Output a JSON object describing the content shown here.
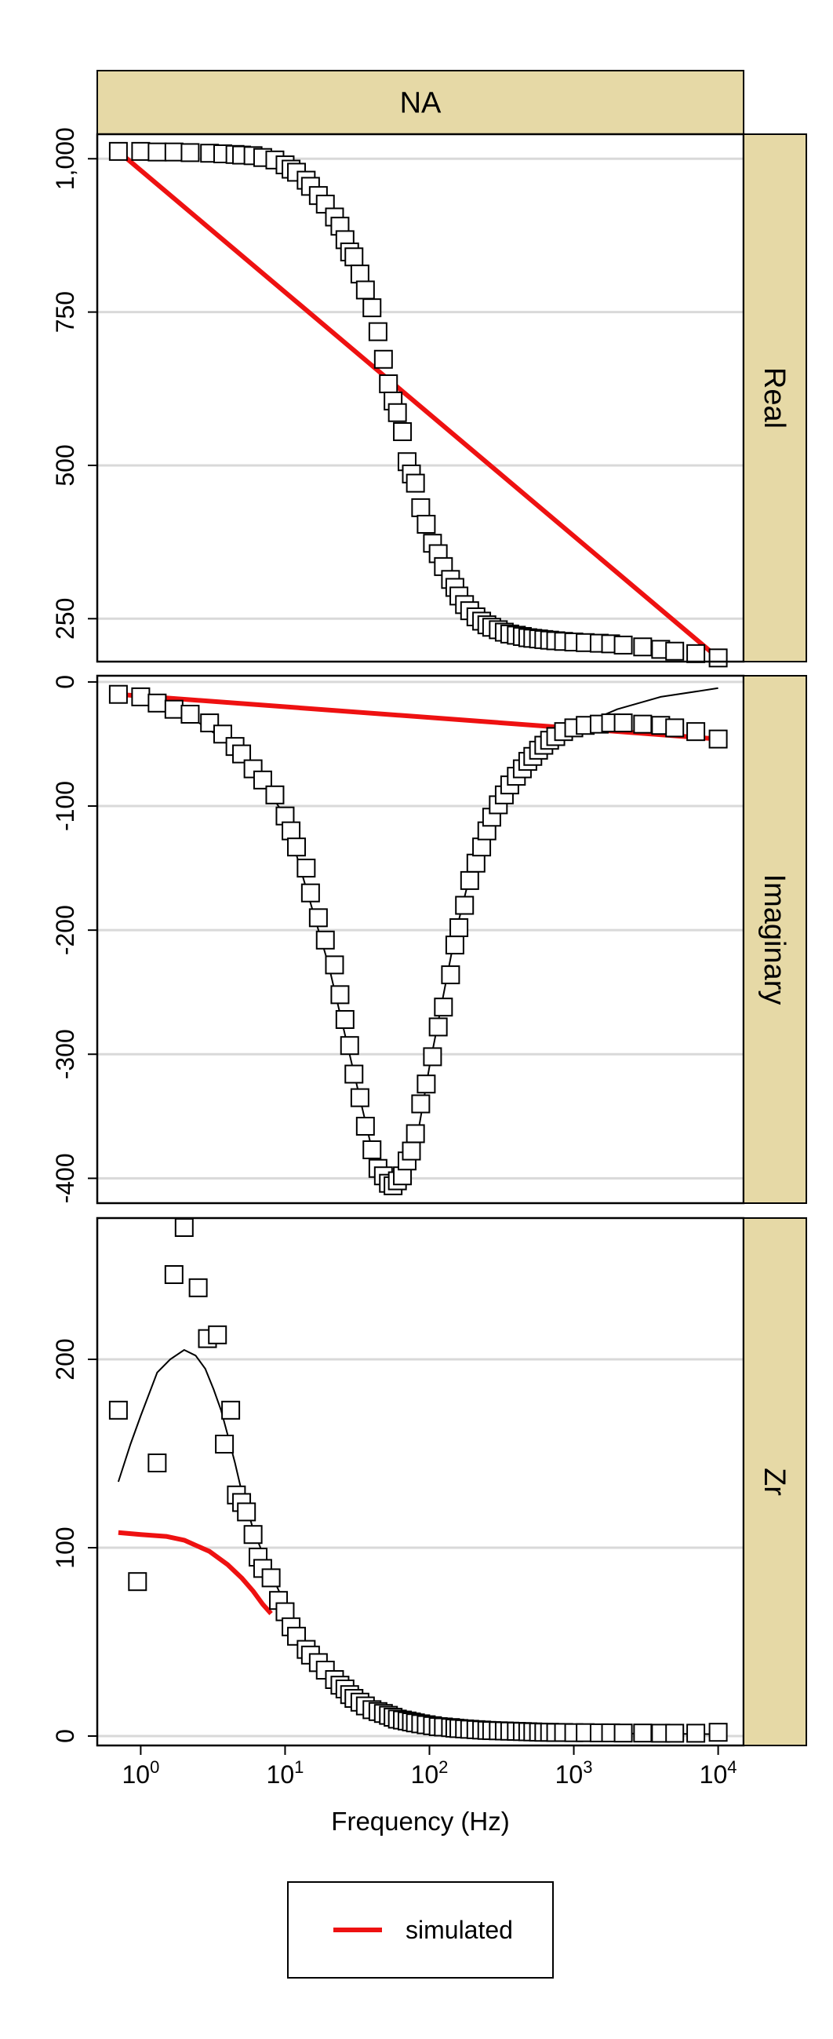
{
  "chart_data": {
    "type": "scatter",
    "title": "",
    "column_strip": "NA",
    "xlabel": "Frequency (Hz)",
    "x_scale": "log",
    "x_range": [
      0.5,
      15000
    ],
    "x_ticks": [
      {
        "value": 1,
        "base": "10",
        "exp": "0"
      },
      {
        "value": 10,
        "base": "10",
        "exp": "1"
      },
      {
        "value": 100,
        "base": "10",
        "exp": "2"
      },
      {
        "value": 1000,
        "base": "10",
        "exp": "3"
      },
      {
        "value": 10000,
        "base": "10",
        "exp": "4"
      }
    ],
    "colors": {
      "strip_fill": "#e6d9a6",
      "simulated": "#ee1111",
      "fit": "#000000",
      "grid": "#d9d9d9",
      "points": "#000000"
    },
    "legend": {
      "position": "bottom",
      "entries": [
        "simulated"
      ]
    },
    "grid": "horizontal major",
    "panels": [
      {
        "strip": "Real",
        "ylim": [
          180,
          1040
        ],
        "y_ticks": [
          250,
          500,
          750,
          1000
        ],
        "y_tick_labels": [
          "250",
          "500",
          "750",
          "1,000"
        ],
        "observed": {
          "x": [
            0.7,
            1,
            1.3,
            1.7,
            2.2,
            3,
            3.7,
            4.5,
            5,
            6,
            7,
            8.5,
            10,
            11,
            12,
            14,
            15,
            17,
            19,
            22,
            24,
            26,
            28,
            30,
            33,
            36,
            40,
            44,
            48,
            52,
            56,
            60,
            65,
            70,
            75,
            80,
            87,
            95,
            105,
            115,
            125,
            140,
            150,
            160,
            175,
            190,
            210,
            230,
            250,
            270,
            300,
            330,
            360,
            400,
            440,
            480,
            520,
            570,
            620,
            680,
            750,
            850,
            1000,
            1200,
            1500,
            1800,
            2200,
            3000,
            4000,
            5000,
            7000,
            10000
          ],
          "y": [
            1012,
            1012,
            1011,
            1011,
            1010,
            1009,
            1008,
            1007,
            1006,
            1005,
            1002,
            998,
            990,
            983,
            978,
            965,
            955,
            940,
            926,
            905,
            890,
            868,
            848,
            840,
            812,
            786,
            757,
            718,
            673,
            633,
            605,
            586,
            555,
            506,
            486,
            471,
            431,
            404,
            373,
            356,
            335,
            314,
            301,
            287,
            273,
            263,
            253,
            246,
            240,
            236,
            232,
            228,
            225,
            223,
            221,
            219,
            218,
            217,
            216,
            215,
            214,
            213,
            212,
            211,
            210,
            209,
            207,
            204,
            200,
            197,
            193,
            186
          ]
        },
        "simulated": {
          "x": [
            0.7,
            10000
          ],
          "y": [
            1012,
            186
          ]
        },
        "fit": {
          "x": [
            0.7,
            10000
          ],
          "y": [
            1012,
            186
          ]
        }
      },
      {
        "strip": "Imaginary",
        "ylim": [
          -420,
          5
        ],
        "y_ticks": [
          -400,
          -300,
          -200,
          -100,
          0
        ],
        "y_tick_labels": [
          "-400",
          "-300",
          "-200",
          "-100",
          "0"
        ],
        "observed": {
          "x": [
            0.7,
            1,
            1.3,
            1.7,
            2.2,
            3,
            3.7,
            4.5,
            5,
            6,
            7,
            8.5,
            10,
            11,
            12,
            14,
            15,
            17,
            19,
            22,
            24,
            26,
            28,
            30,
            33,
            36,
            40,
            44,
            48,
            52,
            56,
            60,
            65,
            70,
            75,
            80,
            87,
            95,
            105,
            115,
            125,
            140,
            150,
            160,
            175,
            190,
            210,
            230,
            250,
            270,
            300,
            330,
            360,
            400,
            440,
            480,
            520,
            570,
            620,
            680,
            750,
            850,
            1000,
            1200,
            1500,
            1800,
            2200,
            3000,
            4000,
            5000,
            7000,
            10000
          ],
          "y": [
            -10,
            -12,
            -17,
            -22,
            -26,
            -33,
            -42,
            -52,
            -58,
            -70,
            -79,
            -91,
            -108,
            -120,
            -133,
            -150,
            -170,
            -190,
            -208,
            -228,
            -252,
            -272,
            -293,
            -316,
            -335,
            -358,
            -377,
            -392,
            -398,
            -404,
            -406,
            -402,
            -398,
            -386,
            -378,
            -364,
            -340,
            -324,
            -302,
            -278,
            -262,
            -236,
            -212,
            -198,
            -180,
            -160,
            -146,
            -133,
            -120,
            -109,
            -99,
            -91,
            -83,
            -76,
            -70,
            -64,
            -60,
            -55,
            -51,
            -47,
            -44,
            -40,
            -37,
            -35,
            -34,
            -33,
            -33,
            -34,
            -35,
            -37,
            -40,
            -46
          ]
        },
        "simulated": {
          "x": [
            0.7,
            10000
          ],
          "y": [
            -10,
            -46
          ]
        },
        "fit": {
          "x": [
            0.7,
            1,
            2,
            5,
            10,
            20,
            40,
            60,
            80,
            100,
            150,
            200,
            300,
            500,
            1000,
            2000,
            4000,
            10000
          ],
          "y": [
            -10,
            -12,
            -25,
            -56,
            -108,
            -228,
            -377,
            -404,
            -375,
            -310,
            -205,
            -146,
            -99,
            -62,
            -37,
            -22,
            -12,
            -5
          ]
        }
      },
      {
        "strip": "Zr",
        "ylim": [
          -5,
          275
        ],
        "y_ticks": [
          0,
          100,
          200
        ],
        "y_tick_labels": [
          "0",
          "100",
          "200"
        ],
        "observed": {
          "x": [
            0.7,
            0.95,
            1.3,
            1.7,
            2,
            2.5,
            2.9,
            3.4,
            3.8,
            4.2,
            4.6,
            5,
            5.4,
            6,
            6.5,
            7,
            8,
            9,
            10,
            11,
            12,
            14,
            15,
            17,
            19,
            22,
            24,
            26,
            28,
            30,
            33,
            36,
            40,
            44,
            48,
            52,
            56,
            60,
            65,
            70,
            75,
            80,
            87,
            95,
            105,
            115,
            125,
            140,
            150,
            160,
            175,
            190,
            210,
            230,
            250,
            270,
            300,
            330,
            360,
            400,
            440,
            480,
            520,
            570,
            620,
            680,
            750,
            850,
            1000,
            1200,
            1500,
            1800,
            2200,
            3000,
            4000,
            5000,
            7000,
            10000
          ],
          "y": [
            173,
            82,
            145,
            245,
            270,
            238,
            211,
            213,
            155,
            173,
            128,
            124,
            119,
            107,
            95,
            89,
            84,
            72,
            66,
            58,
            53,
            46,
            43,
            39,
            35,
            30,
            27,
            25,
            22,
            20,
            18,
            16,
            14,
            13,
            12,
            11,
            10,
            9,
            8.5,
            8,
            7.5,
            7,
            6.5,
            6,
            5.5,
            5,
            4.8,
            4.5,
            4.2,
            4,
            3.8,
            3.6,
            3.4,
            3.2,
            3,
            2.9,
            2.8,
            2.7,
            2.6,
            2.5,
            2.4,
            2.3,
            2.2,
            2.1,
            2,
            2,
            1.9,
            1.9,
            1.8,
            1.8,
            1.7,
            1.7,
            1.6,
            1.6,
            1.5,
            1.5,
            1.5,
            2
          ]
        },
        "simulated": {
          "x": [
            0.7,
            1,
            1.5,
            2,
            3,
            4,
            5,
            6,
            7,
            8
          ],
          "y": [
            108,
            107,
            106,
            104,
            98,
            91,
            84,
            77,
            70,
            65
          ]
        },
        "fit": {
          "x": [
            0.7,
            0.85,
            1,
            1.3,
            1.6,
            2,
            2.4,
            2.8,
            3.2,
            3.6,
            4,
            4.5,
            5,
            5.5,
            6,
            7,
            8,
            10,
            12,
            15,
            20,
            30,
            50,
            100,
            200,
            500,
            1000,
            10000
          ],
          "y": [
            135,
            155,
            170,
            193,
            200,
            205,
            202,
            195,
            184,
            173,
            160,
            145,
            130,
            120,
            110,
            97,
            86,
            70,
            58,
            45,
            32,
            20,
            12,
            6,
            3.5,
            2,
            1.5,
            1
          ]
        }
      }
    ]
  }
}
